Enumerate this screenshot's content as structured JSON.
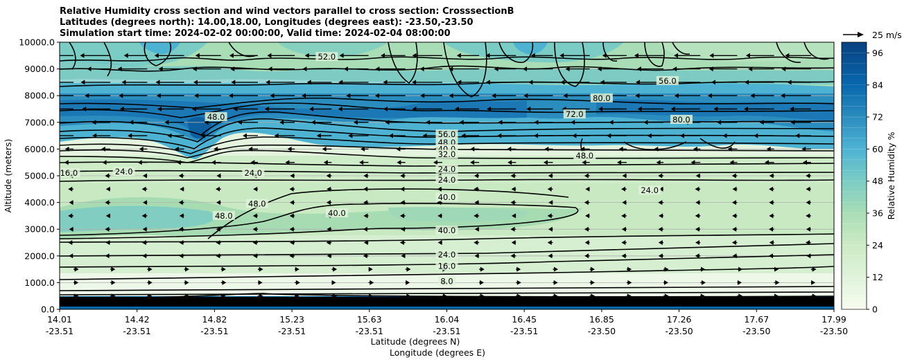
{
  "titles": [
    "Relative Humidity cross section and wind vectors parallel to cross section: CrosssectionB",
    "Latitudes (degrees north): 14.00,18.00, Longitudes (degrees east): -23.50,-23.50",
    "Simulation start time: 2024-02-02 00:00:00, Valid time: 2024-02-04 08:00:00"
  ],
  "quiver_key": "25 m/s",
  "chart_data": {
    "type": "heatmap",
    "ylabel": "Altitude (meters)",
    "xlabel_1": "Latitude (degrees N)",
    "xlabel_2": "Longitude (degrees E)",
    "ylim": [
      0,
      10000
    ],
    "y_ticks": [
      "0.0",
      "1000.0",
      "2000.0",
      "3000.0",
      "4000.0",
      "5000.0",
      "6000.0",
      "7000.0",
      "8000.0",
      "9000.0",
      "10000.0"
    ],
    "x_ticks": [
      {
        "lat": "14.01",
        "lon": "-23.51"
      },
      {
        "lat": "14.42",
        "lon": "-23.51"
      },
      {
        "lat": "14.82",
        "lon": "-23.51"
      },
      {
        "lat": "15.23",
        "lon": "-23.51"
      },
      {
        "lat": "15.63",
        "lon": "-23.51"
      },
      {
        "lat": "16.04",
        "lon": "-23.51"
      },
      {
        "lat": "16.45",
        "lon": "-23.51"
      },
      {
        "lat": "16.85",
        "lon": "-23.50"
      },
      {
        "lat": "17.26",
        "lon": "-23.50"
      },
      {
        "lat": "17.67",
        "lon": "-23.50"
      },
      {
        "lat": "17.99",
        "lon": "-23.50"
      }
    ],
    "grid": "horizontal",
    "colorbar": {
      "label": "Relative Humidity %",
      "range": [
        0,
        100
      ],
      "ticks": [
        "0",
        "12",
        "24",
        "36",
        "48",
        "60",
        "72",
        "84",
        "96"
      ],
      "colormap": "GnBu"
    },
    "contour_labels": [
      {
        "text": "56.0",
        "x": 0.5,
        "y": 6550
      },
      {
        "text": "48.0",
        "x": 0.5,
        "y": 6250
      },
      {
        "text": "40.0",
        "x": 0.5,
        "y": 6000
      },
      {
        "text": "32.0",
        "x": 0.5,
        "y": 5800
      },
      {
        "text": "24.0",
        "x": 0.5,
        "y": 5250
      },
      {
        "text": "24.0",
        "x": 0.5,
        "y": 4850
      },
      {
        "text": "40.0",
        "x": 0.5,
        "y": 4200
      },
      {
        "text": "40.0",
        "x": 0.5,
        "y": 2950
      },
      {
        "text": "24.0",
        "x": 0.5,
        "y": 2050
      },
      {
        "text": "16.0",
        "x": 0.5,
        "y": 1620
      },
      {
        "text": "8.0",
        "x": 0.5,
        "y": 1050
      },
      {
        "text": "72.0",
        "x": 0.665,
        "y": 7300
      },
      {
        "text": "56.0",
        "x": 0.785,
        "y": 8550
      },
      {
        "text": "52.0",
        "x": 0.345,
        "y": 9450
      },
      {
        "text": "48.0",
        "x": 0.202,
        "y": 7200
      },
      {
        "text": "48.0",
        "x": 0.255,
        "y": 3950
      },
      {
        "text": "48.0",
        "x": 0.212,
        "y": 3500
      },
      {
        "text": "40.0",
        "x": 0.358,
        "y": 3600
      },
      {
        "text": "24.0",
        "x": 0.083,
        "y": 5150
      },
      {
        "text": "24.0",
        "x": 0.25,
        "y": 5100
      },
      {
        "text": "16.0",
        "x": 0.012,
        "y": 5100
      },
      {
        "text": "24.0",
        "x": 0.762,
        "y": 4450
      },
      {
        "text": "48.0",
        "x": 0.678,
        "y": 5750
      },
      {
        "text": "80.0",
        "x": 0.7,
        "y": 7900
      },
      {
        "text": "80.0",
        "x": 0.803,
        "y": 7100
      }
    ]
  }
}
